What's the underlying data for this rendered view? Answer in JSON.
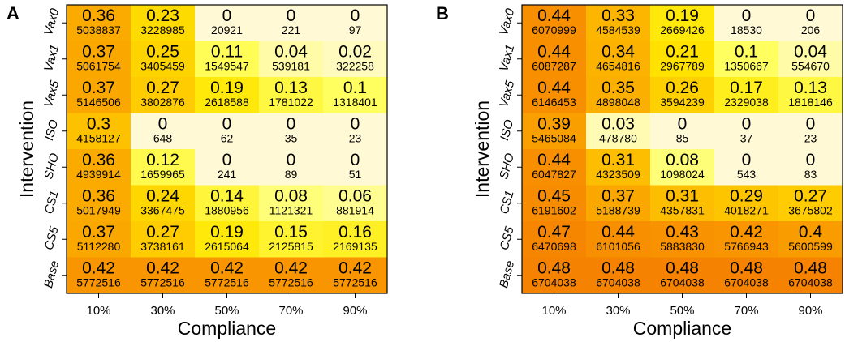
{
  "chart_data": [
    {
      "type": "heatmap",
      "panel": "A",
      "xlabel": "Compliance",
      "ylabel": "Intervention",
      "columns": [
        "10%",
        "30%",
        "50%",
        "70%",
        "90%"
      ],
      "rows": [
        "Vax0",
        "Vax1",
        "Vax5",
        "ISO",
        "SHO",
        "CS1",
        "CS5",
        "Base"
      ],
      "values": [
        [
          0.36,
          0.23,
          0,
          0,
          0
        ],
        [
          0.37,
          0.25,
          0.11,
          0.04,
          0.02
        ],
        [
          0.37,
          0.27,
          0.19,
          0.13,
          0.1
        ],
        [
          0.3,
          0,
          0,
          0,
          0
        ],
        [
          0.36,
          0.12,
          0,
          0,
          0
        ],
        [
          0.36,
          0.24,
          0.14,
          0.08,
          0.06
        ],
        [
          0.37,
          0.27,
          0.19,
          0.15,
          0.16
        ],
        [
          0.42,
          0.42,
          0.42,
          0.42,
          0.42
        ]
      ],
      "counts": [
        [
          "5038837",
          "3228985",
          "20921",
          "221",
          "97"
        ],
        [
          "5061754",
          "3405459",
          "1549547",
          "539181",
          "322258"
        ],
        [
          "5146506",
          "3802876",
          "2618588",
          "1781022",
          "1318401"
        ],
        [
          "4158127",
          "648",
          "62",
          "35",
          "23"
        ],
        [
          "4939914",
          "1659965",
          "241",
          "89",
          "51"
        ],
        [
          "5017949",
          "3367475",
          "1880956",
          "1121321",
          "881914"
        ],
        [
          "5112280",
          "3738161",
          "2615064",
          "2125815",
          "2169135"
        ],
        [
          "5772516",
          "5772516",
          "5772516",
          "5772516",
          "5772516"
        ]
      ]
    },
    {
      "type": "heatmap",
      "panel": "B",
      "xlabel": "Compliance",
      "ylabel": "Intervention",
      "columns": [
        "10%",
        "30%",
        "50%",
        "70%",
        "90%"
      ],
      "rows": [
        "Vax0",
        "Vax1",
        "Vax5",
        "ISO",
        "SHO",
        "CS1",
        "CS5",
        "Base"
      ],
      "values": [
        [
          0.44,
          0.33,
          0.19,
          0,
          0
        ],
        [
          0.44,
          0.34,
          0.21,
          0.1,
          0.04
        ],
        [
          0.44,
          0.35,
          0.26,
          0.17,
          0.13
        ],
        [
          0.39,
          0.03,
          0,
          0,
          0
        ],
        [
          0.44,
          0.31,
          0.08,
          0,
          0
        ],
        [
          0.45,
          0.37,
          0.31,
          0.29,
          0.27
        ],
        [
          0.47,
          0.44,
          0.43,
          0.42,
          0.4
        ],
        [
          0.48,
          0.48,
          0.48,
          0.48,
          0.48
        ]
      ],
      "counts": [
        [
          "6070999",
          "4584539",
          "2669426",
          "18530",
          "206"
        ],
        [
          "6087287",
          "4654816",
          "2967789",
          "1350667",
          "554670"
        ],
        [
          "6146453",
          "4898048",
          "3594239",
          "2329038",
          "1818146"
        ],
        [
          "5465084",
          "478780",
          "85",
          "37",
          "23"
        ],
        [
          "6047827",
          "4323509",
          "1098024",
          "543",
          "83"
        ],
        [
          "6191602",
          "5188739",
          "4357831",
          "4018271",
          "3675802"
        ],
        [
          "6470698",
          "6101056",
          "5883830",
          "5766943",
          "5600599"
        ],
        [
          "6704038",
          "6704038",
          "6704038",
          "6704038",
          "6704038"
        ]
      ]
    }
  ],
  "colors": {
    "scale": [
      "#fff9d6",
      "#ffff60",
      "#ffe600",
      "#fdc100",
      "#f99c00",
      "#f47b00"
    ]
  }
}
